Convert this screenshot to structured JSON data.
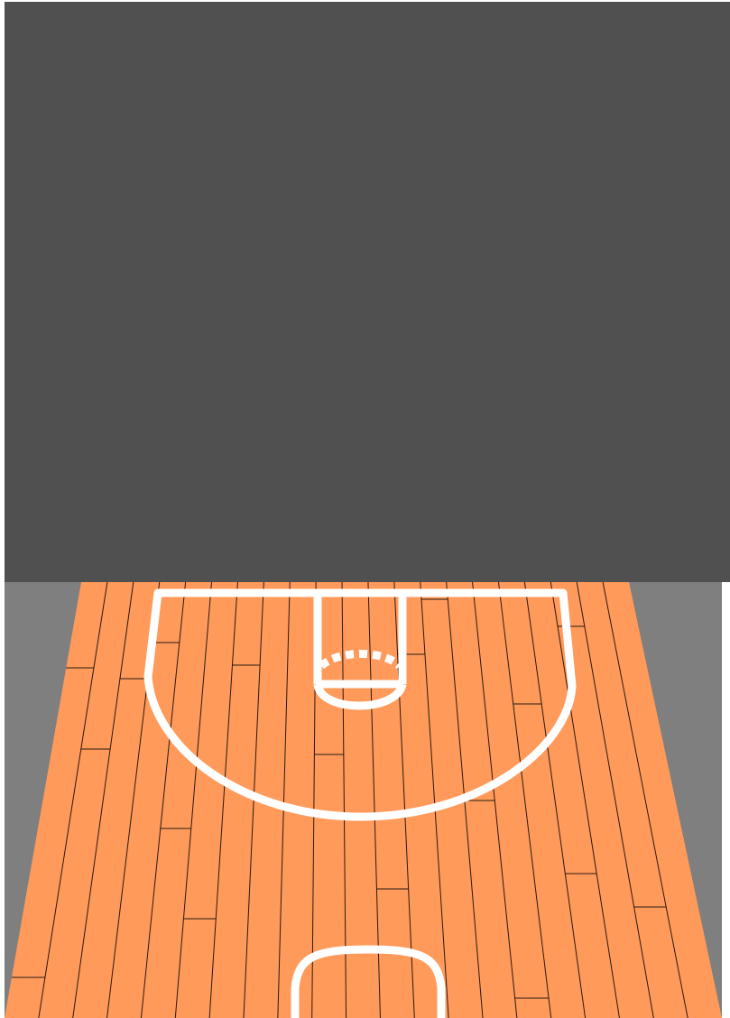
{
  "scene": {
    "kind": "basketball-half-court",
    "view": "perspective",
    "colors": {
      "page": "#ffffff",
      "panel": "#505050",
      "side_floor": "#7f7f7f",
      "court": "#ff9a5a",
      "lines": "#ffffff",
      "board_seams": "#2a1a10"
    },
    "elements": [
      "backboard-panel",
      "hardwood-floor",
      "three-point-line",
      "free-throw-lane",
      "free-throw-circle",
      "center-circle-half"
    ]
  }
}
